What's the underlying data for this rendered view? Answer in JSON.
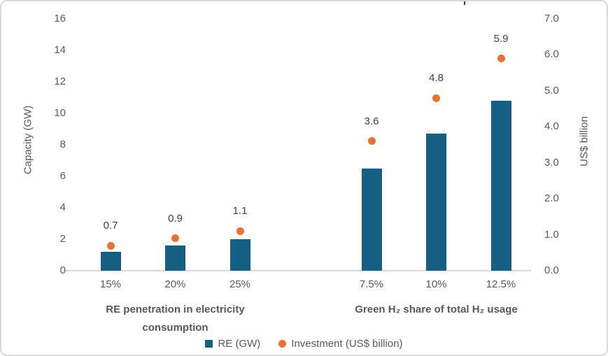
{
  "figure": {
    "background": "#ffffff",
    "border_color": "#d9d9d9"
  },
  "chart_data": {
    "type": "combo-bar-scatter",
    "title": "",
    "grid": "off",
    "legend_position": "bottom-center",
    "series_colors": {
      "bar": "#156082",
      "dot": "#E97132"
    },
    "text_colors": {
      "axis": "#595959",
      "data_label": "#404040"
    },
    "left_axis": {
      "title": "Capacity (GW)",
      "min": 0,
      "max": 16,
      "tick_step": 2,
      "tick_labels": [
        "0",
        "2",
        "4",
        "6",
        "8",
        "10",
        "12",
        "14",
        "16"
      ]
    },
    "right_axis": {
      "title": "US$ billion",
      "min": 0,
      "max": 7,
      "tick_step": 1,
      "tick_labels": [
        "0.0",
        "1.0",
        "2.0",
        "3.0",
        "4.0",
        "5.0",
        "6.0",
        "7.0"
      ]
    },
    "groups": [
      {
        "title": "RE penetration in electricity\nconsumption",
        "categories": [
          "15%",
          "20%",
          "25%"
        ],
        "re_gw": [
          1.2,
          1.6,
          2.0
        ],
        "investment_usd_billion": [
          0.7,
          0.9,
          1.1
        ],
        "investment_labels": [
          "0.7",
          "0.9",
          "1.1"
        ]
      },
      {
        "title": "Green H₂ share of total H₂ usage",
        "categories": [
          "7.5%",
          "10%",
          "12.5%"
        ],
        "re_gw": [
          6.5,
          8.7,
          10.8
        ],
        "investment_usd_billion": [
          3.6,
          4.8,
          5.9
        ],
        "investment_labels": [
          "3.6",
          "4.8",
          "5.9"
        ]
      }
    ],
    "legend": [
      {
        "marker": "square",
        "color": "#156082",
        "label": "RE (GW)"
      },
      {
        "marker": "circle",
        "color": "#E97132",
        "label": "Investment (US$ billion)"
      }
    ]
  }
}
